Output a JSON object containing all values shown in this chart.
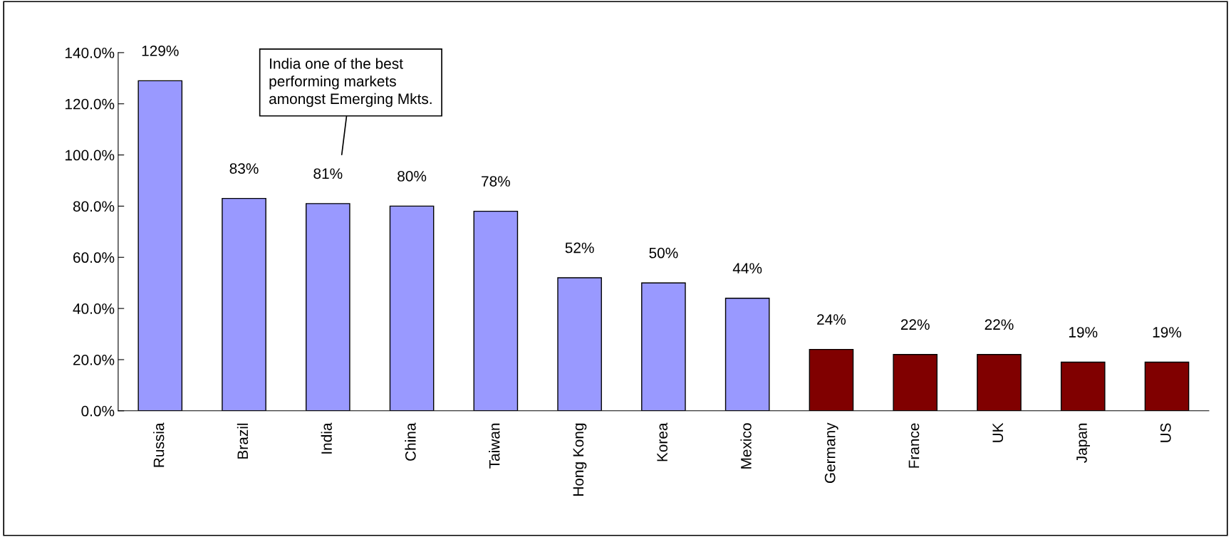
{
  "chart_data": {
    "type": "bar",
    "categories": [
      "Russia",
      "Brazil",
      "India",
      "China",
      "Taiwan",
      "Hong Kong",
      "Korea",
      "Mexico",
      "Germany",
      "France",
      "UK",
      "Japan",
      "US"
    ],
    "values": [
      129,
      83,
      81,
      80,
      78,
      52,
      50,
      44,
      24,
      22,
      22,
      19,
      19
    ],
    "colors": [
      "#9999ff",
      "#9999ff",
      "#9999ff",
      "#9999ff",
      "#9999ff",
      "#9999ff",
      "#9999ff",
      "#9999ff",
      "#800000",
      "#800000",
      "#800000",
      "#800000",
      "#800000"
    ],
    "value_labels": [
      "129%",
      "83%",
      "81%",
      "80%",
      "78%",
      "52%",
      "50%",
      "44%",
      "24%",
      "22%",
      "22%",
      "19%",
      "19%"
    ],
    "ylim": [
      0,
      140
    ],
    "yticks": [
      {
        "value": 0,
        "label": "0.0%"
      },
      {
        "value": 20,
        "label": "20.0%"
      },
      {
        "value": 40,
        "label": "40.0%"
      },
      {
        "value": 60,
        "label": "60.0%"
      },
      {
        "value": 80,
        "label": "80.0%"
      },
      {
        "value": 100,
        "label": "100.0%"
      },
      {
        "value": 120,
        "label": "120.0%"
      },
      {
        "value": 140,
        "label": "140.0%"
      }
    ],
    "annotations": [
      "India one of the best\nperforming markets\namongst Emerging Mkts."
    ],
    "grid": false,
    "legend": false
  }
}
